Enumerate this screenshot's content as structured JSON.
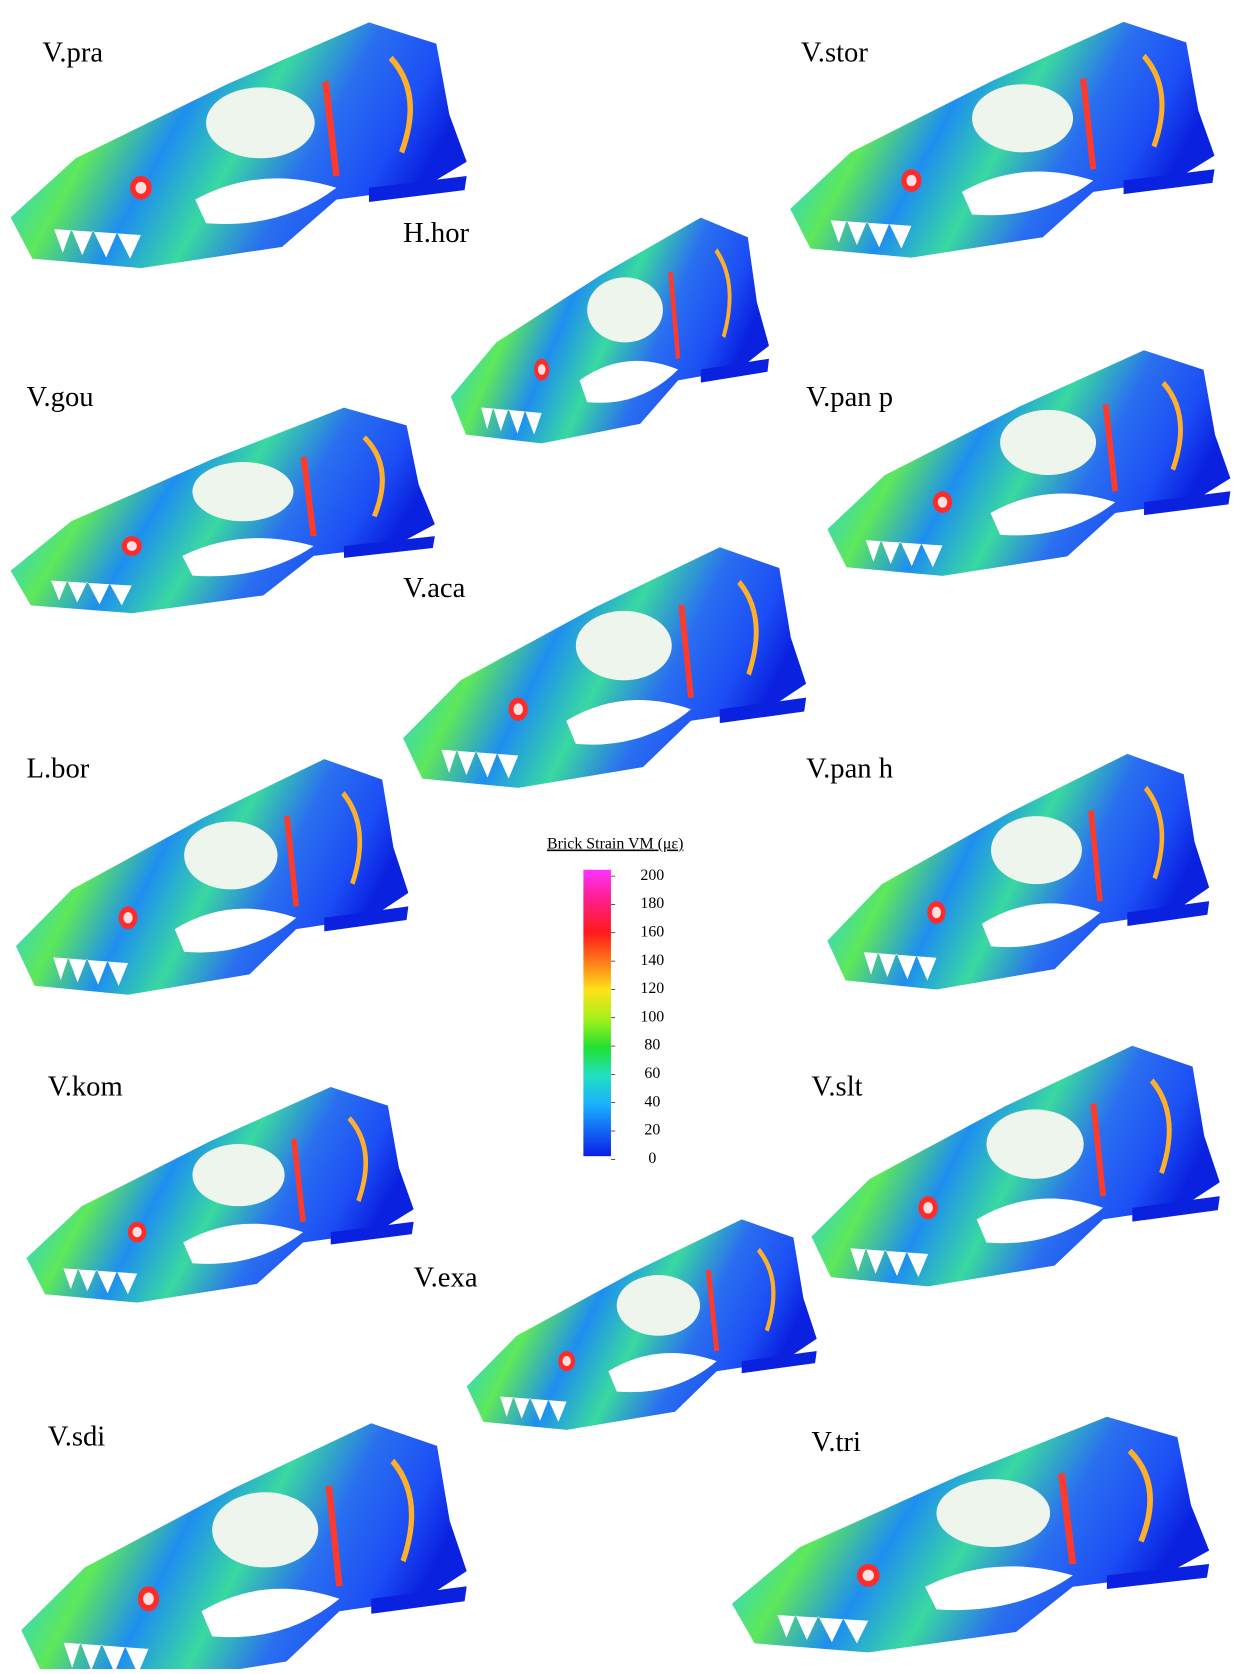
{
  "specimens": [
    "V.pra",
    "V.stor",
    "H.hor",
    "V.gou",
    "V.pan p",
    "V.aca",
    "L.bor",
    "V.pan h",
    "V.kom",
    "V.slt",
    "V.exa",
    "V.sdi",
    "V.tri"
  ],
  "colorbar": {
    "title": "Brick Strain VM (με)",
    "ticks": [
      200,
      180,
      160,
      140,
      120,
      100,
      80,
      60,
      40,
      20,
      0
    ]
  }
}
